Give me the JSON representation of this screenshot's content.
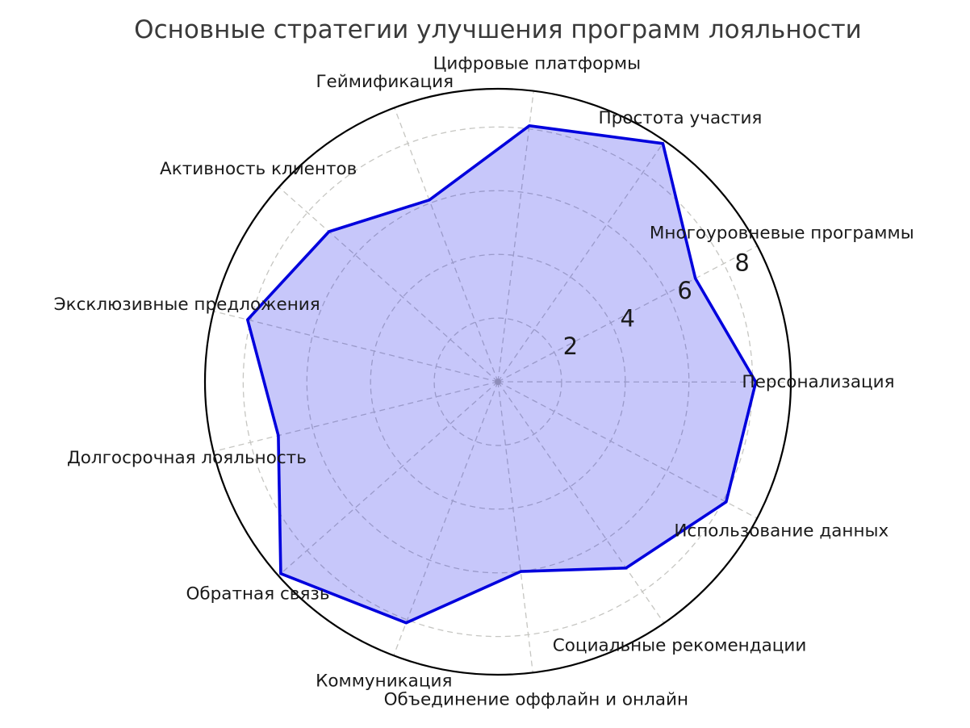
{
  "header": {
    "title": "Основные стратегии улучшения программ лояльности"
  },
  "chart_data": {
    "type": "radar",
    "title": "Основные стратегии улучшения программ лояльности",
    "categories": [
      "Цифровые платформы",
      "Простота участия",
      "Многоуровневые программы",
      "Персонализация",
      "Использование данных",
      "Социальные рекомендации",
      "Объединение оффлайн и онлайн",
      "Коммуникация",
      "Обратная связь",
      "Долгосрочная лояльность",
      "Эксклюзивные предложения",
      "Активность клиентов",
      "Геймификация"
    ],
    "values": [
      8.1,
      9.1,
      7.0,
      8.1,
      8.1,
      7.1,
      6.0,
      8.1,
      9.1,
      7.1,
      8.1,
      7.1,
      6.1
    ],
    "r_ticks": [
      2,
      4,
      6,
      8
    ],
    "r_min": 0,
    "r_max": 9.2,
    "start_angle_deg": 83,
    "direction": "clockwise",
    "rlabel_angle_deg": 26,
    "grid_style": "dashed",
    "legend": "none",
    "colors": {
      "line": "#0000dd",
      "fill": "#0000e6",
      "fill_opacity": 0.22,
      "grid": "#c6c6c2",
      "outline": "#000000",
      "tick_text": "#1a1a1a",
      "label_text": "#1a1a1a",
      "title_text": "#3a3a3a",
      "background": "#ffffff"
    }
  }
}
